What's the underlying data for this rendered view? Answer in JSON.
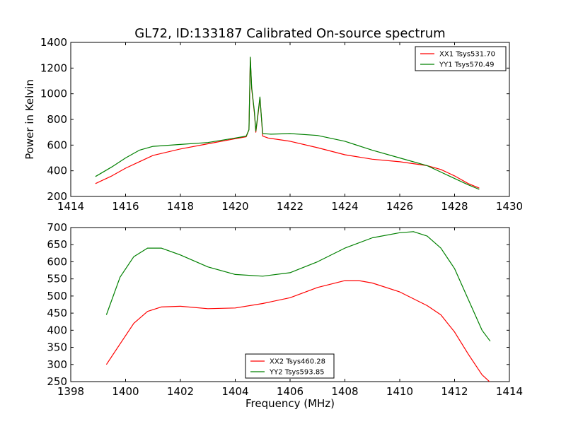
{
  "figure": {
    "title": "GL72, ID:133187 Calibrated On-source spectrum"
  },
  "chart_data": [
    {
      "type": "line",
      "title": "GL72, ID:133187 Calibrated On-source spectrum",
      "xlabel": "",
      "ylabel": "Power in Kelvin",
      "xlim": [
        1414,
        1430
      ],
      "ylim": [
        200,
        1400
      ],
      "xticks": [
        "1414",
        "1416",
        "1418",
        "1420",
        "1422",
        "1424",
        "1426",
        "1428",
        "1430"
      ],
      "yticks": [
        "200",
        "400",
        "600",
        "800",
        "1000",
        "1200",
        "1400"
      ],
      "grid": false,
      "legend_position": "top-right",
      "colors": {
        "XX1 Tsys531.70": "#ff0000",
        "YY1 Tsys570.49": "#008000"
      },
      "series": [
        {
          "name": "XX1 Tsys531.70",
          "color": "#ff0000",
          "points": [
            [
              1414.9,
              300
            ],
            [
              1415.5,
              360
            ],
            [
              1416.0,
              420
            ],
            [
              1416.5,
              470
            ],
            [
              1417.0,
              520
            ],
            [
              1418.0,
              570
            ],
            [
              1419.0,
              610
            ],
            [
              1420.0,
              650
            ],
            [
              1420.4,
              665
            ],
            [
              1420.5,
              720
            ],
            [
              1420.55,
              1280
            ],
            [
              1420.6,
              1040
            ],
            [
              1420.7,
              850
            ],
            [
              1420.75,
              700
            ],
            [
              1420.85,
              870
            ],
            [
              1420.9,
              970
            ],
            [
              1420.95,
              830
            ],
            [
              1421.0,
              670
            ],
            [
              1421.2,
              655
            ],
            [
              1422.0,
              630
            ],
            [
              1423.0,
              580
            ],
            [
              1424.0,
              525
            ],
            [
              1425.0,
              490
            ],
            [
              1426.0,
              470
            ],
            [
              1427.0,
              440
            ],
            [
              1427.5,
              410
            ],
            [
              1428.0,
              360
            ],
            [
              1428.5,
              300
            ],
            [
              1428.9,
              265
            ]
          ]
        },
        {
          "name": "YY1 Tsys570.49",
          "color": "#008000",
          "points": [
            [
              1414.9,
              355
            ],
            [
              1415.5,
              430
            ],
            [
              1416.0,
              500
            ],
            [
              1416.5,
              560
            ],
            [
              1417.0,
              590
            ],
            [
              1418.0,
              605
            ],
            [
              1419.0,
              620
            ],
            [
              1420.0,
              655
            ],
            [
              1420.4,
              670
            ],
            [
              1420.5,
              720
            ],
            [
              1420.55,
              1285
            ],
            [
              1420.6,
              1050
            ],
            [
              1420.7,
              860
            ],
            [
              1420.75,
              710
            ],
            [
              1420.85,
              880
            ],
            [
              1420.9,
              975
            ],
            [
              1420.95,
              830
            ],
            [
              1421.0,
              690
            ],
            [
              1421.3,
              685
            ],
            [
              1422.0,
              690
            ],
            [
              1423.0,
              675
            ],
            [
              1424.0,
              630
            ],
            [
              1425.0,
              560
            ],
            [
              1426.0,
              500
            ],
            [
              1427.0,
              440
            ],
            [
              1427.5,
              390
            ],
            [
              1428.0,
              340
            ],
            [
              1428.5,
              290
            ],
            [
              1428.9,
              255
            ]
          ]
        }
      ]
    },
    {
      "type": "line",
      "title": "",
      "xlabel": "Frequency (MHz)",
      "ylabel": "",
      "xlim": [
        1398,
        1414
      ],
      "ylim": [
        250,
        700
      ],
      "xticks": [
        "1398",
        "1400",
        "1402",
        "1404",
        "1406",
        "1408",
        "1410",
        "1412",
        "1414"
      ],
      "yticks": [
        "250",
        "300",
        "350",
        "400",
        "450",
        "500",
        "550",
        "600",
        "650",
        "700"
      ],
      "grid": false,
      "legend_position": "bottom-center",
      "colors": {
        "XX2 Tsys460.28": "#ff0000",
        "YY2 Tsys593.85": "#008000"
      },
      "series": [
        {
          "name": "XX2 Tsys460.28",
          "color": "#ff0000",
          "points": [
            [
              1399.3,
              300
            ],
            [
              1399.8,
              360
            ],
            [
              1400.3,
              420
            ],
            [
              1400.8,
              455
            ],
            [
              1401.3,
              468
            ],
            [
              1402.0,
              470
            ],
            [
              1403.0,
              463
            ],
            [
              1404.0,
              465
            ],
            [
              1405.0,
              478
            ],
            [
              1406.0,
              495
            ],
            [
              1407.0,
              525
            ],
            [
              1408.0,
              545
            ],
            [
              1408.5,
              545
            ],
            [
              1409.0,
              538
            ],
            [
              1410.0,
              512
            ],
            [
              1411.0,
              472
            ],
            [
              1411.5,
              445
            ],
            [
              1412.0,
              395
            ],
            [
              1412.5,
              330
            ],
            [
              1413.0,
              270
            ],
            [
              1413.3,
              248
            ]
          ]
        },
        {
          "name": "YY2 Tsys593.85",
          "color": "#008000",
          "points": [
            [
              1399.3,
              445
            ],
            [
              1399.8,
              555
            ],
            [
              1400.3,
              615
            ],
            [
              1400.8,
              640
            ],
            [
              1401.3,
              640
            ],
            [
              1402.0,
              620
            ],
            [
              1403.0,
              585
            ],
            [
              1404.0,
              563
            ],
            [
              1405.0,
              558
            ],
            [
              1406.0,
              568
            ],
            [
              1407.0,
              600
            ],
            [
              1408.0,
              640
            ],
            [
              1409.0,
              670
            ],
            [
              1410.0,
              685
            ],
            [
              1410.5,
              688
            ],
            [
              1411.0,
              675
            ],
            [
              1411.5,
              640
            ],
            [
              1412.0,
              580
            ],
            [
              1412.5,
              490
            ],
            [
              1413.0,
              400
            ],
            [
              1413.3,
              368
            ]
          ]
        }
      ]
    }
  ]
}
